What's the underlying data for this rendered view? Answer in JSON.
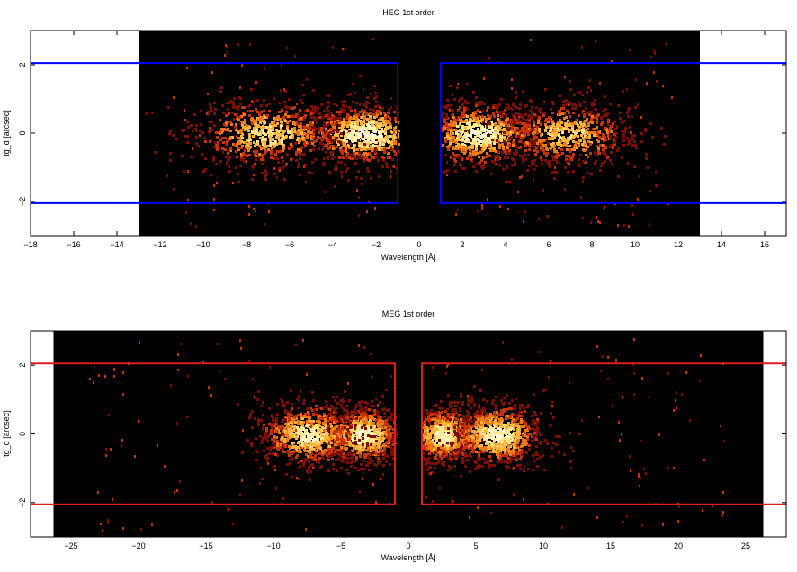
{
  "chart_data": [
    {
      "type": "heatmap",
      "title": "HEG 1st order",
      "xlabel": "Wavelength [Å]",
      "ylabel": "tg_d [arcsec]",
      "xlim": [
        -18,
        17
      ],
      "ylim": [
        -3,
        3
      ],
      "data_region_x": [
        -13,
        13
      ],
      "xticks": [
        -18,
        -16,
        -14,
        -12,
        -10,
        -8,
        -6,
        -4,
        -2,
        0,
        2,
        4,
        6,
        8,
        10,
        12,
        14,
        16
      ],
      "xtick_labels": [
        "−18",
        "−16",
        "−14",
        "−12",
        "−10",
        "−8",
        "−6",
        "−4",
        "−2",
        "0",
        "2",
        "4",
        "6",
        "8",
        "10",
        "12",
        "14",
        "16"
      ],
      "yticks": [
        -2,
        0,
        2
      ],
      "ytick_labels": [
        "−2",
        "0",
        "2"
      ],
      "grid": false,
      "colormap": [
        "#000000",
        "#7a0f00",
        "#c83200",
        "#f07814",
        "#ffb43c",
        "#ffe68c",
        "#fffad2"
      ],
      "box_color": "#0000ff",
      "extraction_boxes": [
        {
          "x": [
            -18,
            -1
          ],
          "y": [
            -2.05,
            2.05
          ]
        },
        {
          "x": [
            1,
            17
          ],
          "y": [
            -2.05,
            2.05
          ]
        }
      ],
      "emission_clusters": [
        {
          "center": -2.5,
          "spread": 1.4,
          "y_spread": 0.45,
          "intensity": 1.0
        },
        {
          "center": -7.0,
          "spread": 1.8,
          "y_spread": 0.5,
          "intensity": 0.8
        },
        {
          "center": 2.7,
          "spread": 1.3,
          "y_spread": 0.45,
          "intensity": 1.0
        },
        {
          "center": 6.8,
          "spread": 1.6,
          "y_spread": 0.5,
          "intensity": 0.75
        }
      ]
    },
    {
      "type": "heatmap",
      "title": "MEG 1st order",
      "xlabel": "Wavelength [Å]",
      "ylabel": "tg_d [arcsec]",
      "xlim": [
        -28,
        28
      ],
      "ylim": [
        -3,
        3
      ],
      "data_region_x": [
        -26.3,
        26.3
      ],
      "xticks": [
        -25,
        -20,
        -15,
        -10,
        -5,
        0,
        5,
        10,
        15,
        20,
        25
      ],
      "xtick_labels": [
        "−25",
        "−20",
        "−15",
        "−10",
        "−5",
        "0",
        "5",
        "10",
        "15",
        "20",
        "25"
      ],
      "yticks": [
        -2,
        0,
        2
      ],
      "ytick_labels": [
        "−2",
        "0",
        "2"
      ],
      "grid": false,
      "colormap": [
        "#000000",
        "#7a0f00",
        "#c83200",
        "#f07814",
        "#ffb43c",
        "#ffe68c",
        "#fffad2"
      ],
      "box_color": "#dc1e1e",
      "extraction_boxes": [
        {
          "x": [
            -28,
            -1
          ],
          "y": [
            -2.05,
            2.05
          ]
        },
        {
          "x": [
            1,
            28
          ],
          "y": [
            -2.05,
            2.05
          ]
        }
      ],
      "emission_clusters": [
        {
          "center": -3.4,
          "spread": 1.4,
          "y_spread": 0.4,
          "intensity": 1.0
        },
        {
          "center": -7.5,
          "spread": 1.8,
          "y_spread": 0.45,
          "intensity": 0.9
        },
        {
          "center": 2.5,
          "spread": 1.3,
          "y_spread": 0.4,
          "intensity": 0.95
        },
        {
          "center": 6.5,
          "spread": 1.7,
          "y_spread": 0.45,
          "intensity": 0.95
        }
      ]
    }
  ]
}
